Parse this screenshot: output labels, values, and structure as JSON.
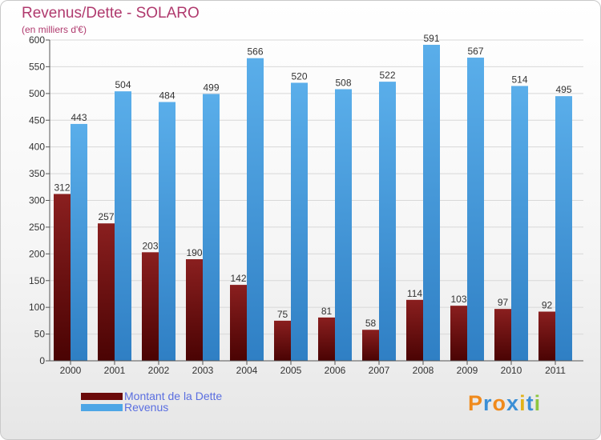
{
  "chart_data": {
    "type": "bar",
    "title": "Revenus/Dette - SOLARO",
    "subtitle": "(en milliers d'€)",
    "categories": [
      "2000",
      "2001",
      "2002",
      "2003",
      "2004",
      "2005",
      "2006",
      "2007",
      "2008",
      "2009",
      "2010",
      "2011"
    ],
    "series": [
      {
        "name": "Montant de la Dette",
        "values": [
          312,
          257,
          203,
          190,
          142,
          75,
          81,
          58,
          114,
          103,
          97,
          92
        ],
        "color": "#6b0a0a"
      },
      {
        "name": "Revenus",
        "values": [
          443,
          504,
          484,
          499,
          566,
          520,
          508,
          522,
          591,
          567,
          514,
          495
        ],
        "color": "#4ea6e6"
      }
    ],
    "ylim": [
      0,
      600
    ],
    "yticks": [
      0,
      50,
      100,
      150,
      200,
      250,
      300,
      350,
      400,
      450,
      500,
      550,
      600
    ],
    "grid": true,
    "legend_position": "bottom-left"
  },
  "logo": {
    "text": "Proxiti",
    "colors": [
      "#f08a1c",
      "#3b8fd6",
      "#f08a1c",
      "#3b8fd6",
      "#e2b21a",
      "#3b8fd6",
      "#8dc63f"
    ]
  }
}
